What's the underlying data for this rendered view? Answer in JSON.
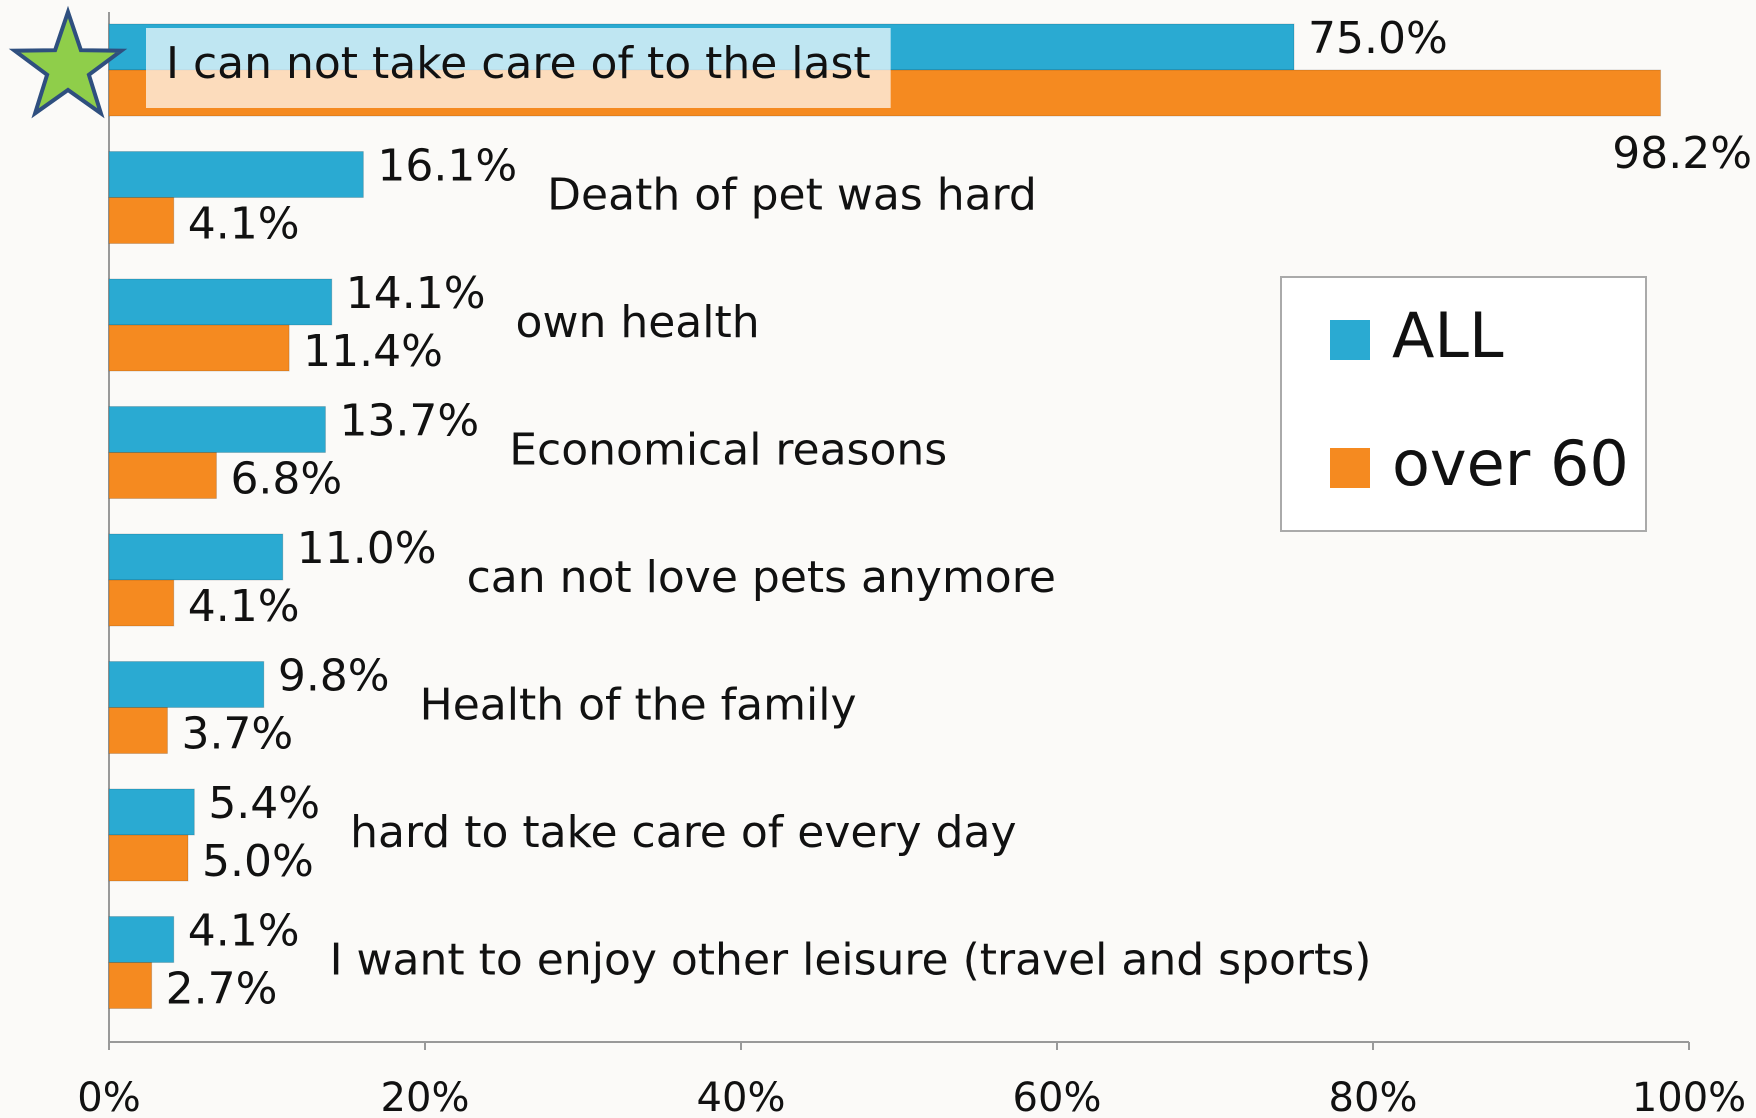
{
  "chart_data": {
    "type": "hbar",
    "categories": [
      "I can not take care of to the last",
      "Death of pet was hard",
      "own health",
      "Economical reasons",
      "can not love pets anymore",
      "Health of the family",
      "hard to take care of every day",
      "I want to enjoy other leisure (travel and sports)"
    ],
    "series": [
      {
        "name": "ALL",
        "color": "#2aaad2",
        "values": [
          75.0,
          16.1,
          14.1,
          13.7,
          11.0,
          9.8,
          5.4,
          4.1
        ],
        "value_labels": [
          "75.0%",
          "16.1%",
          "14.1%",
          "13.7%",
          "11.0%",
          "9.8%",
          "5.4%",
          "4.1%"
        ]
      },
      {
        "name": "over 60",
        "color": "#f58a20",
        "values": [
          98.2,
          4.1,
          11.4,
          6.8,
          4.1,
          3.7,
          5.0,
          2.7
        ],
        "value_labels": [
          "98.2%",
          "4.1%",
          "11.4%",
          "6.8%",
          "4.1%",
          "3.7%",
          "5.0%",
          "2.7%"
        ]
      }
    ],
    "xlim": [
      0,
      100
    ],
    "xticks": [
      {
        "value": 0,
        "label": "0%"
      },
      {
        "value": 20,
        "label": "20%"
      },
      {
        "value": 40,
        "label": "40%"
      },
      {
        "value": 60,
        "label": "60%"
      },
      {
        "value": 80,
        "label": "80%"
      },
      {
        "value": 100,
        "label": "100%"
      }
    ],
    "legend": "right"
  }
}
